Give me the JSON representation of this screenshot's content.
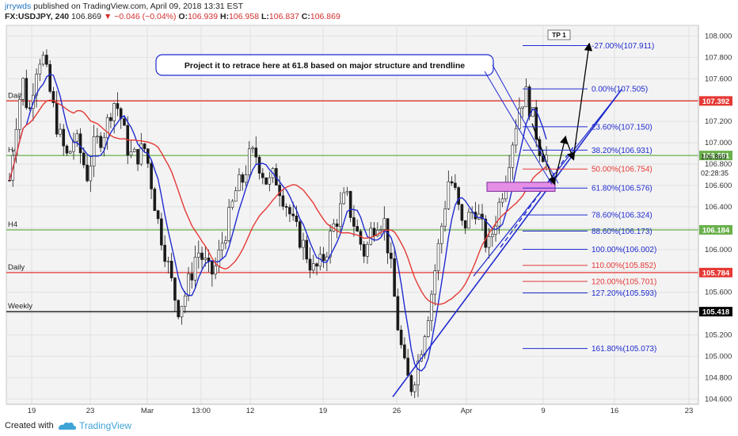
{
  "header": {
    "author": "jrrywds",
    "published_text": "published on TradingView.com, April 09, 2018 13:31 EST",
    "symbol": "FX:USDJPY, 240",
    "last": "106.869",
    "change": "−0.046 (−0.04%)",
    "o_label": "O:",
    "o": "106.939",
    "h_label": "H:",
    "h": "106.958",
    "l_label": "L:",
    "l": "106.837",
    "c_label": "C:",
    "c": "106.869"
  },
  "footer": {
    "created_with": "Created with",
    "brand": "TradingView"
  },
  "colors": {
    "red": "#e53935",
    "blue": "#1f2bd0",
    "green": "#6ab04c",
    "black": "#000000",
    "magenta": "#cc33cc",
    "candle": "#1a1a1a"
  },
  "chart_data": {
    "type": "candlestick",
    "ylim": [
      104.55,
      108.1
    ],
    "y_ticks": [
      104.6,
      104.8,
      105.0,
      105.2,
      105.4,
      105.6,
      105.8,
      106.0,
      106.2,
      106.4,
      106.6,
      106.8,
      107.0,
      107.2,
      107.4,
      107.6,
      107.8,
      108.0
    ],
    "y_tick_labels": [
      "104.600",
      "104.800",
      "105.000",
      "105.200",
      "105.400",
      "105.600",
      "105.800",
      "106.000",
      "106.200",
      "106.400",
      "106.600",
      "106.800",
      "107.000",
      "107.200",
      "107.400",
      "107.600",
      "107.800",
      "108.000"
    ],
    "x_tick_labels": [
      "19",
      "23",
      "Mar",
      "13:00",
      "12",
      "19",
      "26",
      "Apr",
      "9",
      "16",
      "23"
    ],
    "price_badges": [
      {
        "value": 107.392,
        "label": "107.392",
        "color": "#e53935"
      },
      {
        "value": 106.881,
        "label": "106.881",
        "color": "#6ab04c"
      },
      {
        "value": 106.184,
        "label": "106.184",
        "color": "#6ab04c"
      },
      {
        "value": 105.784,
        "label": "105.784",
        "color": "#e53935"
      },
      {
        "value": 105.418,
        "label": "105.418",
        "color": "#000000"
      }
    ],
    "price_labels": [
      {
        "value": 106.869,
        "label": "106.869"
      },
      {
        "value": 106.76,
        "label": "02:28:35"
      }
    ],
    "horizontal_levels": [
      {
        "value": 107.392,
        "label": "Daily",
        "color": "#e53935"
      },
      {
        "value": 106.881,
        "label": "H4",
        "color": "#6ab04c"
      },
      {
        "value": 106.184,
        "label": "H4",
        "color": "#6ab04c"
      },
      {
        "value": 105.784,
        "label": "Daily",
        "color": "#e53935"
      },
      {
        "value": 105.418,
        "label": "Weekly",
        "color": "#000000"
      }
    ],
    "fib_levels": [
      {
        "value": 107.911,
        "label": "-27.00%(107.911)",
        "color": "#1f2bd0"
      },
      {
        "value": 107.505,
        "label": "0.00%(107.505)",
        "color": "#1f2bd0"
      },
      {
        "value": 107.15,
        "label": "23.60%(107.150)",
        "color": "#1f2bd0"
      },
      {
        "value": 106.931,
        "label": "38.20%(106.931)",
        "color": "#1f2bd0"
      },
      {
        "value": 106.754,
        "label": "50.00%(106.754)",
        "color": "#e53935"
      },
      {
        "value": 106.576,
        "label": "61.80%(106.576)",
        "color": "#1f2bd0"
      },
      {
        "value": 106.324,
        "label": "78.60%(106.324)",
        "color": "#1f2bd0"
      },
      {
        "value": 106.173,
        "label": "88.60%(106.173)",
        "color": "#1f2bd0"
      },
      {
        "value": 106.002,
        "label": "100.00%(106.002)",
        "color": "#1f2bd0"
      },
      {
        "value": 105.852,
        "label": "110.00%(105.852)",
        "color": "#e53935"
      },
      {
        "value": 105.701,
        "label": "120.00%(105.701)",
        "color": "#e53935"
      },
      {
        "value": 105.593,
        "label": "127.20%(105.593)",
        "color": "#1f2bd0"
      },
      {
        "value": 105.073,
        "label": "161.80%(105.073)",
        "color": "#1f2bd0"
      }
    ],
    "tp_label": "TP 1",
    "annotation": "Project it to retrace here at 61.8 based on major structure and trendline",
    "anchor_price_path": [
      106.65,
      107.2,
      107.6,
      107.25,
      107.7,
      107.85,
      107.55,
      107.25,
      107.0,
      106.85,
      107.05,
      106.9,
      106.7,
      106.95,
      107.05,
      107.15,
      107.4,
      107.3,
      107.0,
      106.85,
      106.9,
      106.95,
      106.6,
      106.25,
      106.0,
      105.7,
      105.45,
      105.55,
      105.75,
      106.0,
      105.9,
      105.75,
      105.85,
      106.1,
      106.3,
      106.55,
      106.65,
      106.85,
      106.9,
      106.75,
      106.6,
      106.7,
      106.55,
      106.4,
      106.2,
      106.1,
      105.95,
      105.8,
      105.85,
      106.0,
      106.2,
      106.35,
      106.5,
      106.3,
      106.1,
      105.95,
      106.2,
      106.3,
      106.25,
      105.8,
      105.3,
      104.9,
      104.7,
      104.9,
      105.2,
      105.5,
      105.9,
      106.3,
      106.7,
      106.5,
      106.2,
      106.3,
      106.4,
      106.2,
      106.0,
      106.25,
      106.5,
      106.8,
      107.1,
      107.4,
      107.45,
      107.2,
      106.95,
      106.87
    ],
    "moving_averages": [
      {
        "name": "",
        "color": "#1f2bd0",
        "period": 6
      },
      {
        "name": "",
        "color": "#e53935",
        "period": 20
      }
    ]
  }
}
